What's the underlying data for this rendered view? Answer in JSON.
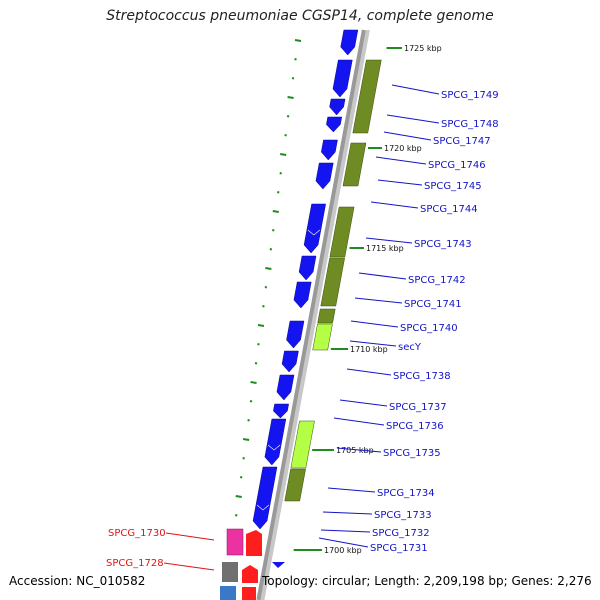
{
  "title": "Streptococcus pneumoniae CGSP14, complete genome",
  "accession": "Accession: NC_010582",
  "topology": "Topology: circular; Length: 2,209,198 bp; Genes: 2,276",
  "colors": {
    "background": "#ffffff",
    "backbone": "#999999",
    "forward_gene": "#1414f0",
    "reverse_gene": "#6e8c23",
    "light_gene": "#b4ff46",
    "red_label": "#e11414",
    "blue_label": "#1414c8",
    "pink_gene": "#eb32a0",
    "red_gene": "#ff1e1e",
    "gray_gene": "#707070",
    "tick_green": "#1e8c1e"
  },
  "ticks": [
    "1725 kbp",
    "1720 kbp",
    "1715 kbp",
    "1710 kbp",
    "1705 kbp",
    "1700 kbp"
  ],
  "gene_labels": [
    "SPCG_1749",
    "SPCG_1748",
    "SPCG_1747",
    "SPCG_1746",
    "SPCG_1745",
    "SPCG_1744",
    "SPCG_1743",
    "SPCG_1742",
    "SPCG_1741",
    "SPCG_1740",
    "secY",
    "SPCG_1738",
    "SPCG_1737",
    "SPCG_1736",
    "SPCG_1735",
    "SPCG_1734",
    "SPCG_1733",
    "SPCG_1732",
    "SPCG_1731",
    "SPCG_1730",
    "SPCG_1728"
  ]
}
